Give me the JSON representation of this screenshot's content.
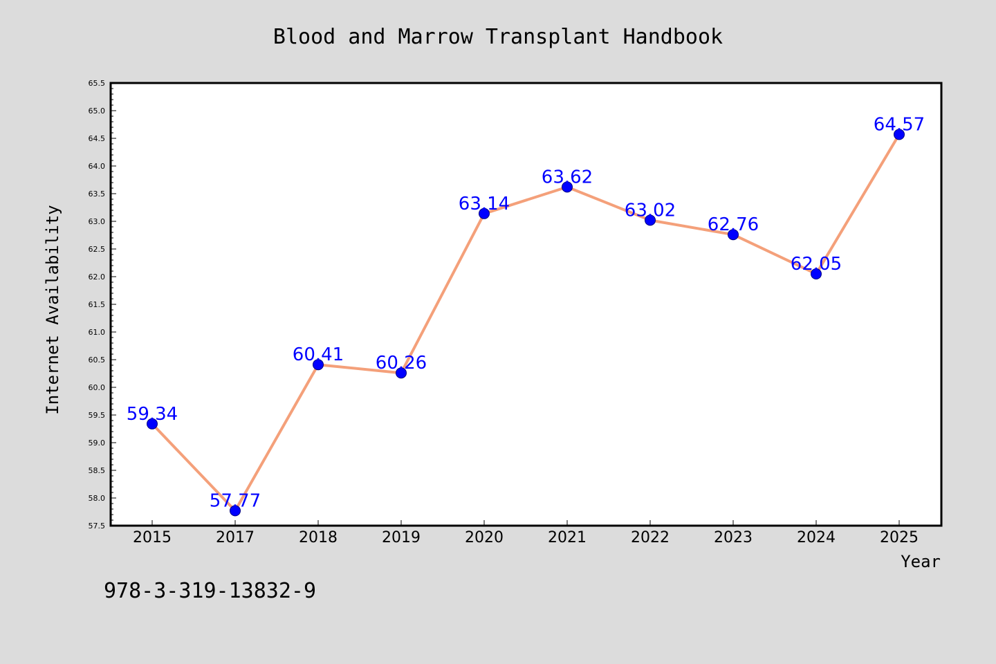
{
  "chart_data": {
    "type": "line",
    "title": "Blood and Marrow Transplant Handbook",
    "xlabel": "Year",
    "ylabel": "Internet Availability",
    "categories": [
      "2015",
      "2017",
      "2018",
      "2019",
      "2020",
      "2021",
      "2022",
      "2023",
      "2024",
      "2025"
    ],
    "series": [
      {
        "values": [
          59.34,
          57.77,
          60.41,
          60.26,
          63.14,
          63.62,
          63.02,
          62.76,
          62.05,
          64.57
        ],
        "line_color": "#f4a07a",
        "marker_color": "#0000ff"
      }
    ],
    "data_labels": [
      "59.34",
      "57.77",
      "60.41",
      "60.26",
      "63.14",
      "63.62",
      "63.02",
      "62.76",
      "62.05",
      "64.57"
    ],
    "ylim": [
      57.5,
      65.5
    ],
    "yticks": [
      "57.5",
      "58.0",
      "58.5",
      "59.0",
      "59.5",
      "60.0",
      "60.5",
      "61.0",
      "61.5",
      "62.0",
      "62.5",
      "63.0",
      "63.5",
      "64.0",
      "64.5",
      "65.0",
      "65.5"
    ],
    "grid": false,
    "legend": "none"
  },
  "footnote": "978-3-319-13832-9",
  "colors": {
    "background": "#dcdcdc",
    "plot_area": "#ffffff",
    "line": "#f4a07a",
    "marker": "#0000ff",
    "data_label": "#0000ff"
  }
}
